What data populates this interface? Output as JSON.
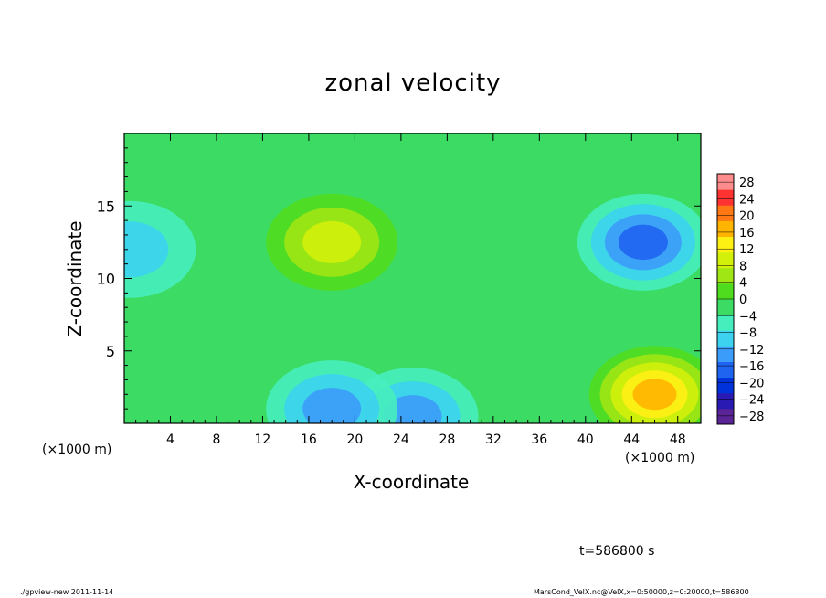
{
  "chart_data": {
    "type": "heatmap",
    "title": "zonal velocity",
    "xlabel": "X-coordinate",
    "ylabel": "Z-coordinate",
    "x_unit_label": "(×1000 m)",
    "x_ticks": [
      4,
      8,
      12,
      16,
      20,
      24,
      28,
      32,
      36,
      40,
      44,
      48
    ],
    "y_ticks": [
      5,
      10,
      15
    ],
    "xlim": [
      0,
      50
    ],
    "ylim": [
      0,
      20
    ],
    "colorbar": {
      "levels": [
        28,
        24,
        20,
        16,
        12,
        8,
        4,
        0,
        -4,
        -8,
        -12,
        -16,
        -20,
        -24,
        -28
      ],
      "range": [
        -30,
        30
      ]
    },
    "field_features": [
      {
        "x": 18,
        "z": 12.5,
        "value": 12,
        "desc": "positive max"
      },
      {
        "x": 46,
        "z": 2,
        "value": 18,
        "desc": "positive max near surface"
      },
      {
        "x": 45,
        "z": 12.5,
        "value": -15,
        "desc": "negative min"
      },
      {
        "x": 25,
        "z": 0.5,
        "value": -12,
        "desc": "negative min near surface"
      },
      {
        "x": 18,
        "z": 1,
        "value": -10,
        "desc": "negative min near surface"
      },
      {
        "x": 0.5,
        "z": 12,
        "value": -8,
        "desc": "negative near left edge"
      }
    ]
  },
  "time_label": "t=586800 s",
  "footer_left": "./gpview-new  2011-11-14",
  "footer_right": "MarsCond_VelX.nc@VelX,x=0:50000,z=0:20000,t=586800",
  "palette": [
    "#5a2496",
    "#2a1ab4",
    "#0032dc",
    "#1e64f0",
    "#3c9cfa",
    "#3cd2f0",
    "#46eebe",
    "#3cdc64",
    "#50dc1e",
    "#a0e614",
    "#d2f00a",
    "#fff014",
    "#ffb400",
    "#ff7814",
    "#ff3232",
    "#ff8c8c"
  ]
}
